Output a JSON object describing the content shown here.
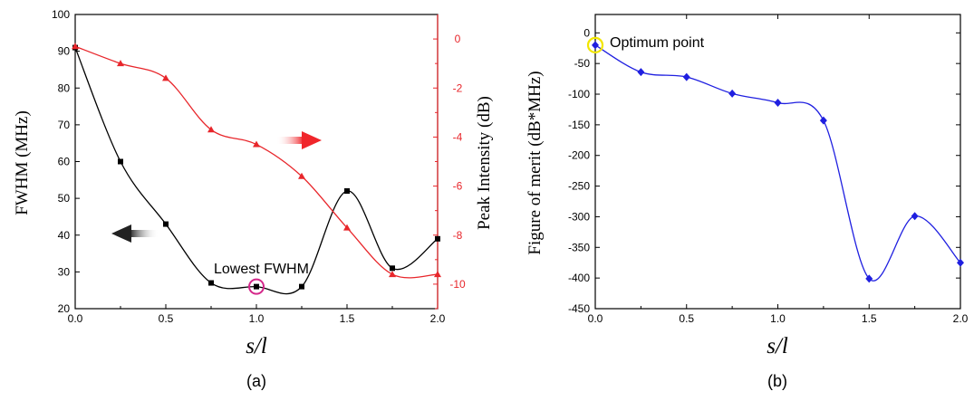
{
  "chart_data": [
    {
      "type": "line",
      "panel_label": "(a)",
      "xlabel": "s/l",
      "x_ticks": [
        "0.0",
        "0.5",
        "1.0",
        "1.5",
        "2.0"
      ],
      "xlim": [
        0,
        2
      ],
      "ylabel_left": "FWHM (MHz)",
      "ylim_left": [
        20,
        100
      ],
      "y_ticks_left": [
        "20",
        "30",
        "40",
        "50",
        "60",
        "70",
        "80",
        "90",
        "100"
      ],
      "ylabel_right": "Peak Intensity (dB)",
      "ylim_right": [
        -11,
        1
      ],
      "y_ticks_right": [
        "0",
        "-2",
        "-4",
        "-6",
        "-8",
        "-10"
      ],
      "series": [
        {
          "axis": "left",
          "color": "#000000",
          "marker": "square",
          "x": [
            0,
            0.25,
            0.5,
            0.75,
            1.0,
            1.25,
            1.5,
            1.75,
            2.0
          ],
          "values": [
            91,
            60,
            43,
            27,
            26,
            26,
            52,
            31,
            39
          ]
        },
        {
          "axis": "right",
          "color": "#e8262b",
          "marker": "triangle",
          "x": [
            0,
            0.25,
            0.5,
            0.75,
            1.0,
            1.25,
            1.5,
            1.75,
            2.0
          ],
          "values": [
            -0.3,
            -1.0,
            -1.6,
            -3.7,
            -4.3,
            -5.6,
            -7.7,
            -9.6,
            -9.6
          ]
        }
      ],
      "annotations": [
        {
          "text": "Lowest FWHM",
          "x": 1.0,
          "y": 26,
          "circle_color": "#d4288a"
        }
      ],
      "grid": false
    },
    {
      "type": "line",
      "panel_label": "(b)",
      "xlabel": "s/l",
      "x_ticks": [
        "0.0",
        "0.5",
        "1.0",
        "1.5",
        "2.0"
      ],
      "xlim": [
        0,
        2
      ],
      "ylabel": "Figure of merit (dB*MHz)",
      "ylim": [
        -450,
        0
      ],
      "y_ticks": [
        "0",
        "-50",
        "-100",
        "-150",
        "-200",
        "-250",
        "-300",
        "-350",
        "-400",
        "-450"
      ],
      "series": [
        {
          "color": "#1f1fe0",
          "marker": "diamond",
          "x": [
            0,
            0.25,
            0.5,
            0.75,
            1.0,
            1.25,
            1.5,
            1.75,
            2.0
          ],
          "values": [
            -20,
            -64,
            -72,
            -99,
            -114,
            -143,
            -401,
            -299,
            -375
          ]
        }
      ],
      "annotations": [
        {
          "text": "Optimum point",
          "x": 0,
          "y": -20,
          "circle_color": "#f2e600"
        }
      ],
      "grid": false
    }
  ]
}
